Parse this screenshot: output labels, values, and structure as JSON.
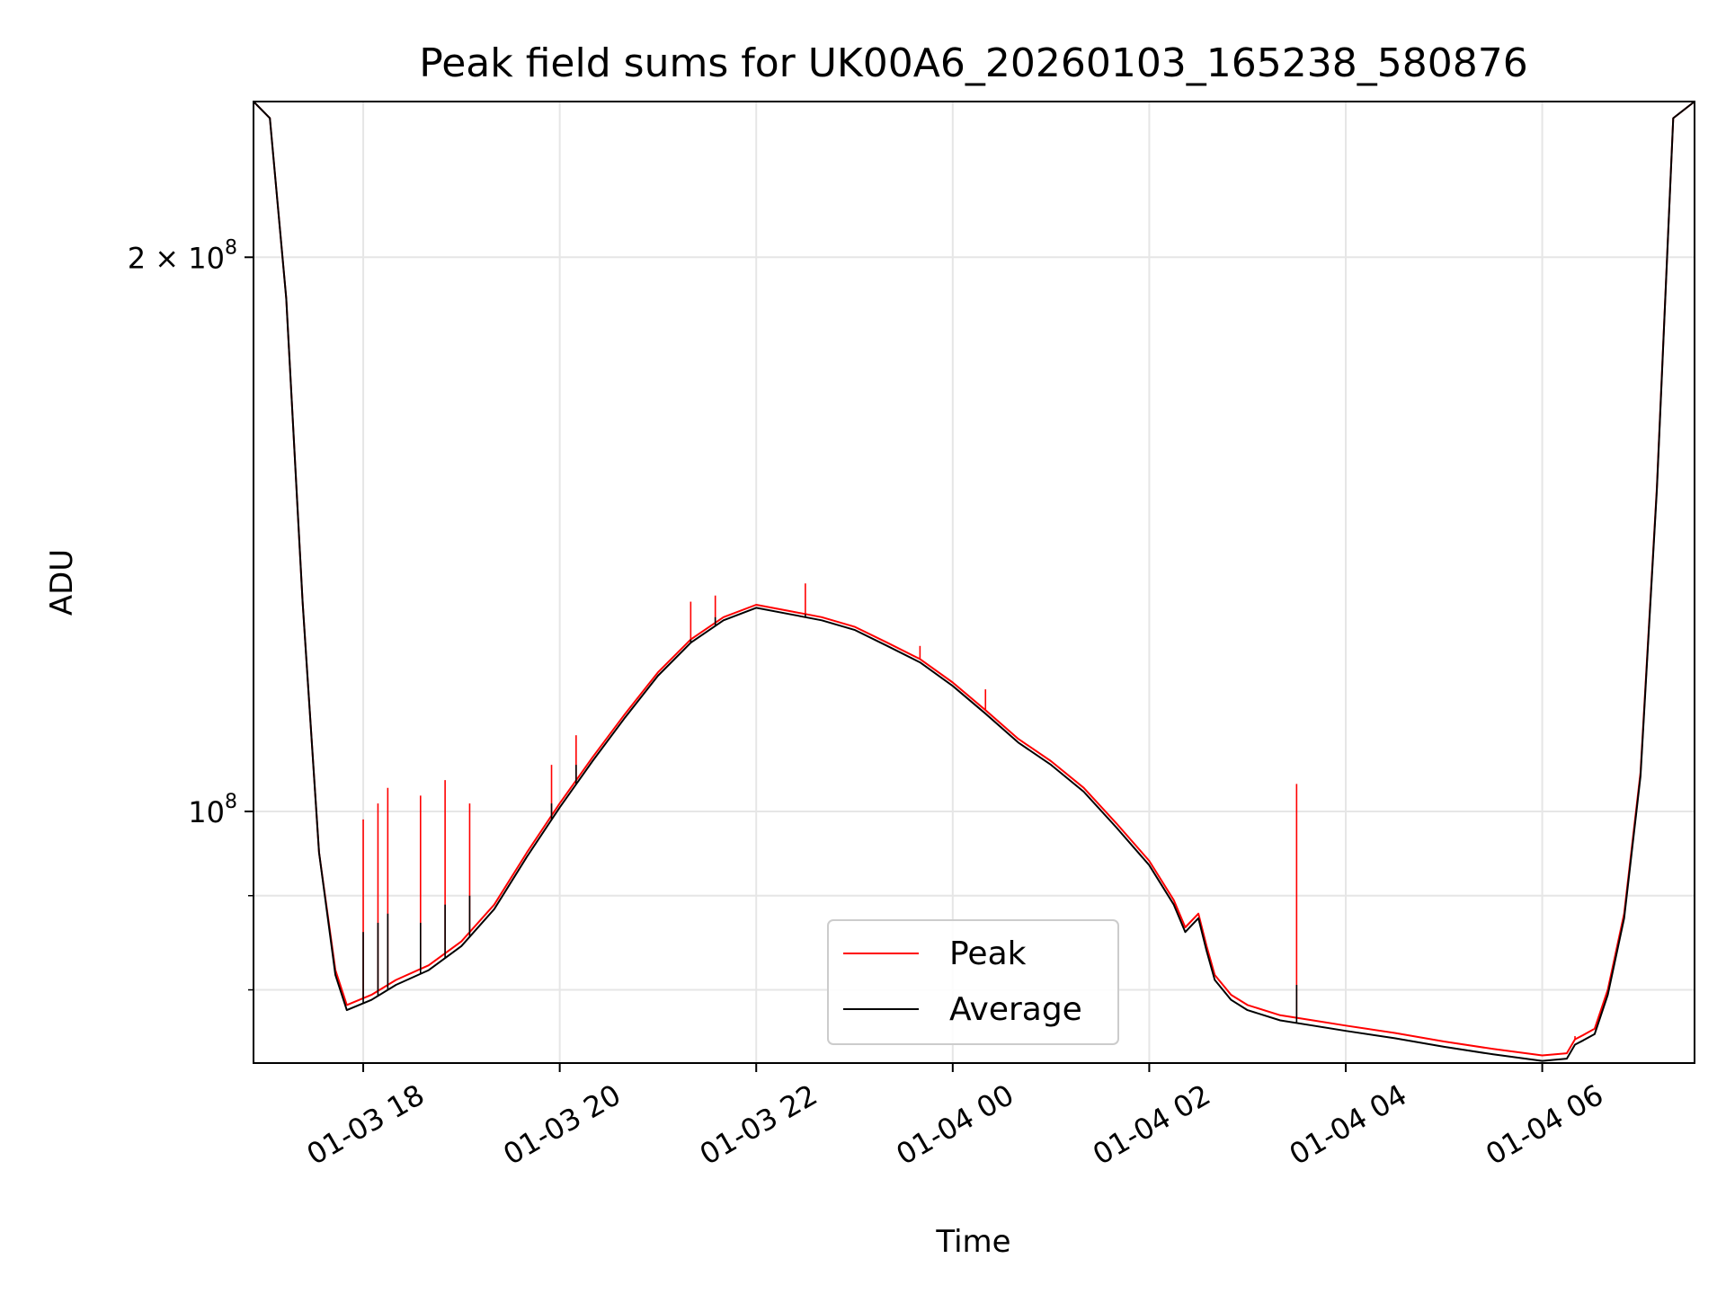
{
  "chart_data": {
    "type": "line",
    "title": "Peak field sums for UK00A6_20260103_165238_580876",
    "xlabel": "Time",
    "ylabel": "ADU",
    "y_scale": "log",
    "xlim": [
      "2026-01-03T16:53",
      "2026-01-04T07:33"
    ],
    "ylim": [
      73000000,
      243000000
    ],
    "grid": true,
    "legend_position": "lower-center",
    "x_ticks": [
      {
        "value": "2026-01-03T18:00",
        "label": "01-03 18"
      },
      {
        "value": "2026-01-03T20:00",
        "label": "01-03 20"
      },
      {
        "value": "2026-01-03T22:00",
        "label": "01-03 22"
      },
      {
        "value": "2026-01-04T00:00",
        "label": "01-04 00"
      },
      {
        "value": "2026-01-04T02:00",
        "label": "01-04 02"
      },
      {
        "value": "2026-01-04T04:00",
        "label": "01-04 04"
      },
      {
        "value": "2026-01-04T06:00",
        "label": "01-04 06"
      }
    ],
    "y_major_ticks": [
      {
        "value": 100000000,
        "base": "10",
        "exp": "8",
        "mult": ""
      },
      {
        "value": 200000000,
        "base": "10",
        "exp": "8",
        "mult": "2 × "
      }
    ],
    "y_minor_ticks": [
      80000000,
      90000000
    ],
    "x": [
      "2026-01-03T16:53",
      "2026-01-03T17:03",
      "2026-01-03T17:13",
      "2026-01-03T17:23",
      "2026-01-03T17:33",
      "2026-01-03T17:43",
      "2026-01-03T17:50",
      "2026-01-03T18:05",
      "2026-01-03T18:20",
      "2026-01-03T18:40",
      "2026-01-03T19:00",
      "2026-01-03T19:20",
      "2026-01-03T19:40",
      "2026-01-03T20:00",
      "2026-01-03T20:20",
      "2026-01-03T20:40",
      "2026-01-03T21:00",
      "2026-01-03T21:20",
      "2026-01-03T21:40",
      "2026-01-03T22:00",
      "2026-01-03T22:20",
      "2026-01-03T22:40",
      "2026-01-03T23:00",
      "2026-01-03T23:20",
      "2026-01-03T23:40",
      "2026-01-04T00:00",
      "2026-01-04T00:20",
      "2026-01-04T00:40",
      "2026-01-04T01:00",
      "2026-01-04T01:20",
      "2026-01-04T01:40",
      "2026-01-04T02:00",
      "2026-01-04T02:15",
      "2026-01-04T02:22",
      "2026-01-04T02:30",
      "2026-01-04T02:35",
      "2026-01-04T02:40",
      "2026-01-04T02:50",
      "2026-01-04T03:00",
      "2026-01-04T03:20",
      "2026-01-04T03:40",
      "2026-01-04T04:00",
      "2026-01-04T04:30",
      "2026-01-04T05:00",
      "2026-01-04T05:30",
      "2026-01-04T06:00",
      "2026-01-04T06:15",
      "2026-01-04T06:20",
      "2026-01-04T06:25",
      "2026-01-04T06:32",
      "2026-01-04T06:40",
      "2026-01-04T06:50",
      "2026-01-04T07:00",
      "2026-01-04T07:10",
      "2026-01-04T07:20",
      "2026-01-04T07:33"
    ],
    "series": [
      {
        "name": "Peak",
        "color": "#ff0000",
        "values": [
          243000000,
          238000000,
          190000000,
          130000000,
          95000000,
          82000000,
          78500000,
          79500000,
          81000000,
          82500000,
          85000000,
          89000000,
          95000000,
          101000000,
          107000000,
          113000000,
          119000000,
          124000000,
          127500000,
          129500000,
          128500000,
          127500000,
          126000000,
          123500000,
          121000000,
          117500000,
          113500000,
          109500000,
          106500000,
          103000000,
          98500000,
          94000000,
          89500000,
          86500000,
          88000000,
          84500000,
          81500000,
          79500000,
          78500000,
          77500000,
          77000000,
          76500000,
          75800000,
          75000000,
          74300000,
          73700000,
          73900000,
          75200000,
          75600000,
          76200000,
          80000000,
          88000000,
          105000000,
          150000000,
          238000000,
          243000000
        ]
      },
      {
        "name": "Average",
        "color": "#000000",
        "values": [
          243000000,
          238000000,
          190000000,
          130000000,
          95000000,
          81500000,
          78000000,
          79000000,
          80500000,
          82000000,
          84500000,
          88500000,
          94500000,
          100500000,
          106500000,
          112500000,
          118500000,
          123500000,
          127000000,
          129000000,
          128000000,
          127000000,
          125500000,
          123000000,
          120500000,
          117000000,
          113000000,
          109000000,
          106000000,
          102500000,
          98000000,
          93500000,
          89000000,
          86000000,
          87500000,
          84000000,
          81000000,
          79000000,
          78000000,
          77000000,
          76500000,
          76000000,
          75300000,
          74500000,
          73800000,
          73200000,
          73400000,
          74700000,
          75100000,
          75700000,
          79500000,
          87500000,
          104500000,
          149500000,
          238000000,
          243000000
        ]
      }
    ],
    "spikes": [
      {
        "x": "2026-01-03T18:00",
        "peak": 99000000,
        "average": 86000000
      },
      {
        "x": "2026-01-03T18:09",
        "peak": 101000000,
        "average": 87000000
      },
      {
        "x": "2026-01-03T18:15",
        "peak": 103000000,
        "average": 88000000
      },
      {
        "x": "2026-01-03T18:35",
        "peak": 102000000,
        "average": 87000000
      },
      {
        "x": "2026-01-03T18:50",
        "peak": 104000000,
        "average": 89000000
      },
      {
        "x": "2026-01-03T19:05",
        "peak": 101000000,
        "average": 90000000
      },
      {
        "x": "2026-01-03T19:55",
        "peak": 106000000,
        "average": 101000000
      },
      {
        "x": "2026-01-03T20:10",
        "peak": 110000000,
        "average": 106000000
      },
      {
        "x": "2026-01-03T21:20",
        "peak": 130000000,
        "average": 124000000
      },
      {
        "x": "2026-01-03T21:35",
        "peak": 131000000,
        "average": 127500000
      },
      {
        "x": "2026-01-03T22:30",
        "peak": 133000000,
        "average": 128000000
      },
      {
        "x": "2026-01-03T23:40",
        "peak": 123000000,
        "average": 120500000
      },
      {
        "x": "2026-01-04T00:20",
        "peak": 116500000,
        "average": 113000000
      },
      {
        "x": "2026-01-04T03:30",
        "peak": 103500000,
        "average": 80500000
      },
      {
        "x": "2026-01-04T06:20",
        "peak": 75500000,
        "average": 74700000
      }
    ]
  }
}
